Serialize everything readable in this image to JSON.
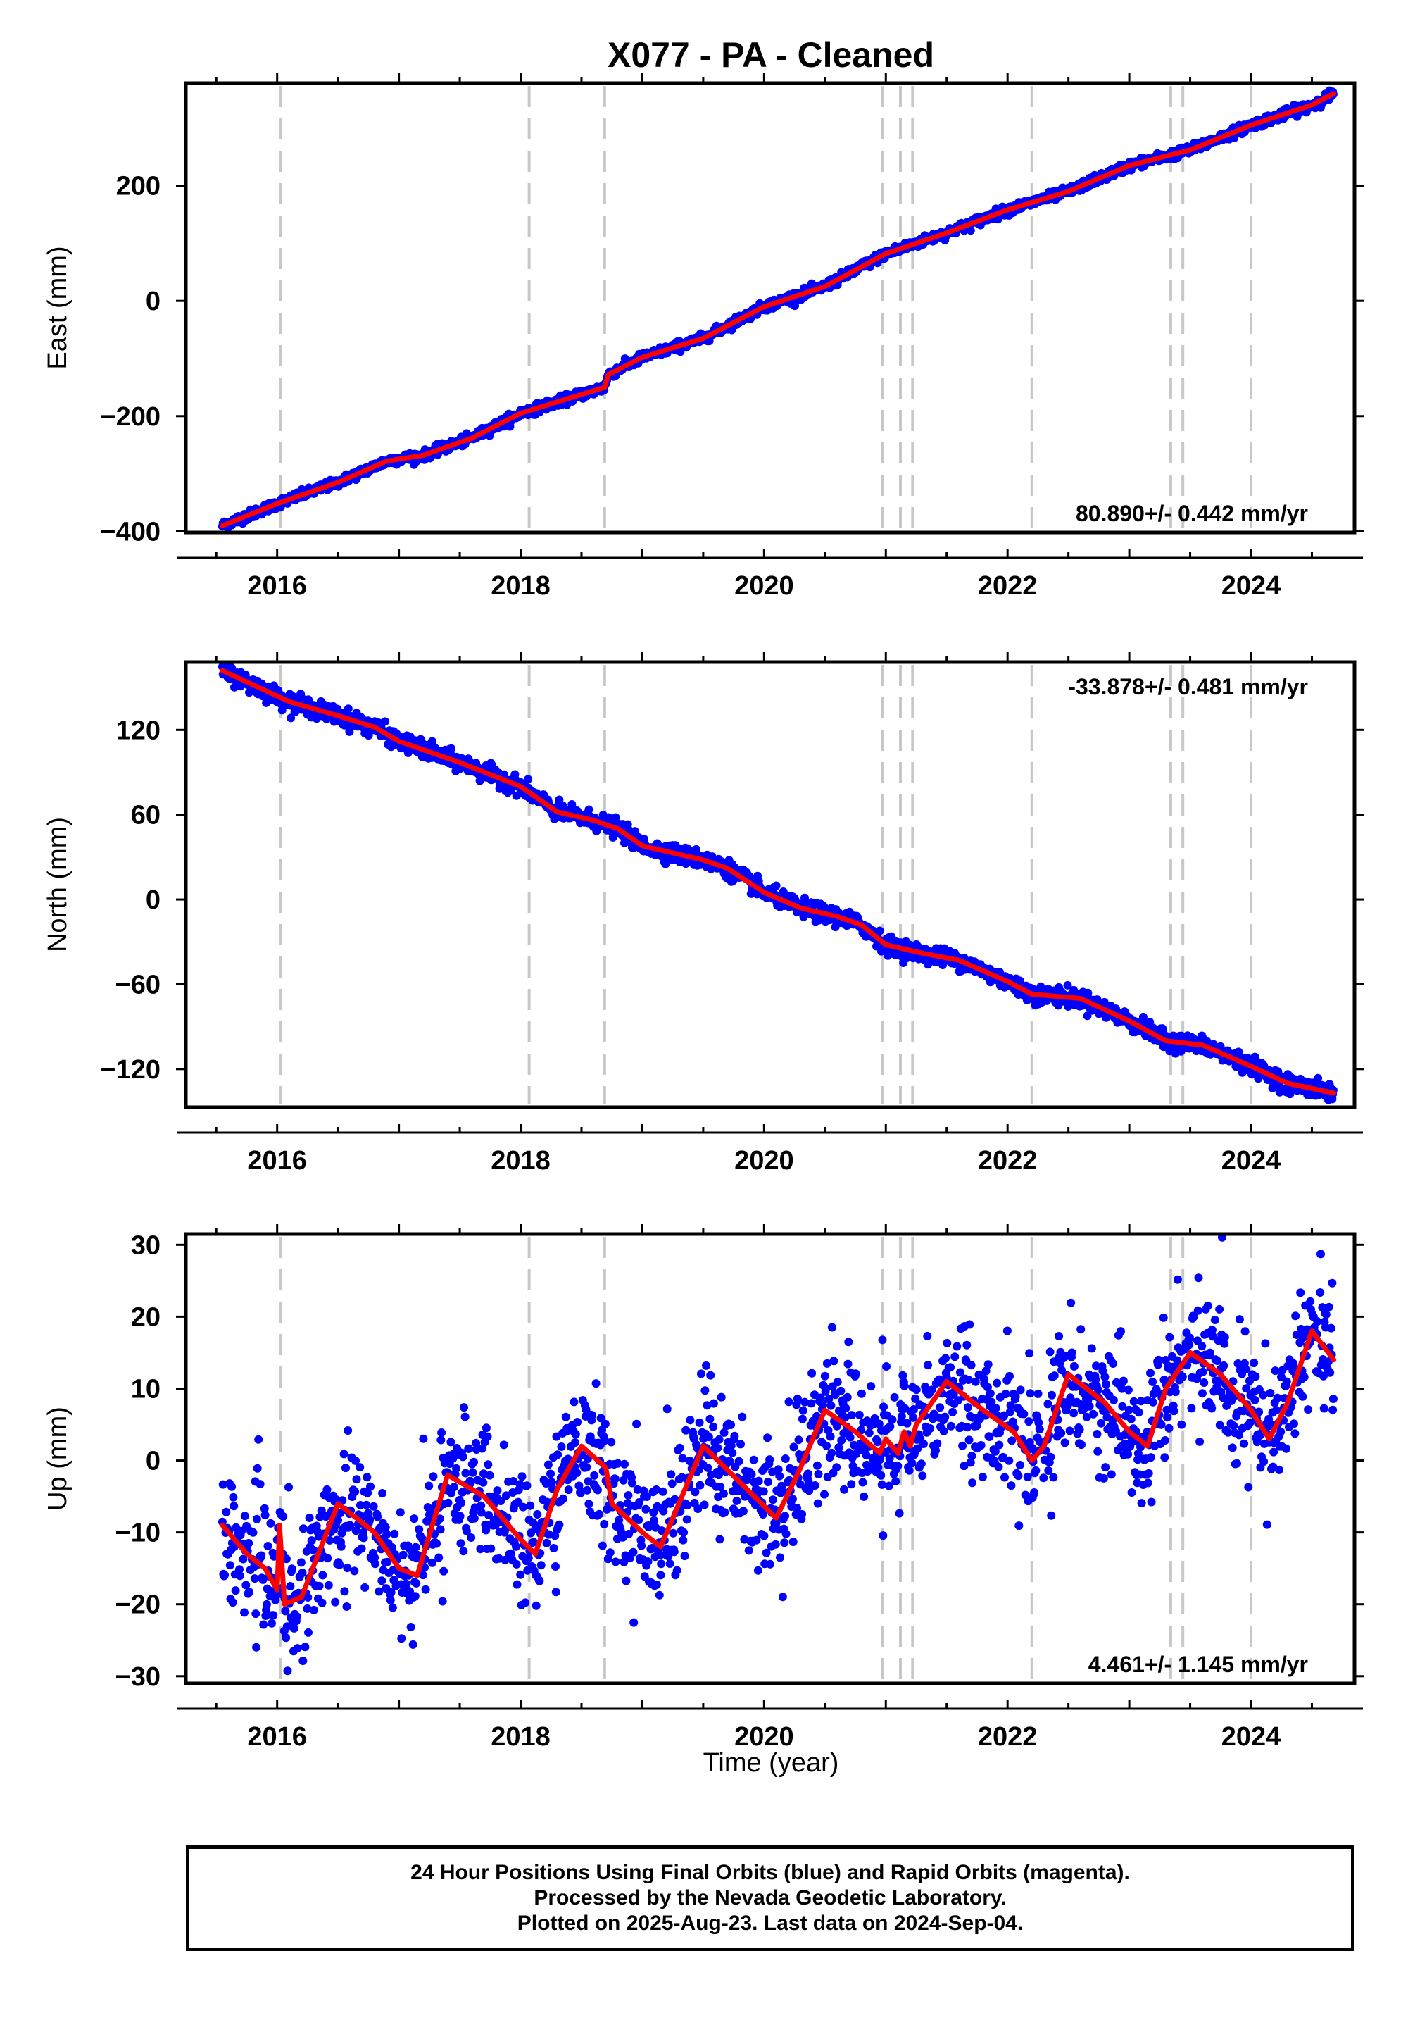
{
  "title": "X077  - PA - Cleaned",
  "footer": {
    "line1": "24 Hour Positions Using Final Orbits (blue) and Rapid Orbits (magenta).",
    "line2": "Processed by the Nevada Geodetic Laboratory.",
    "line3": "Plotted on 2025-Aug-23. Last data on 2024-Sep-04."
  },
  "colors": {
    "points": "#0000ff",
    "fit": "#ff0000",
    "event_lines": "#c8c8c8"
  },
  "chart_data": [
    {
      "type": "scatter",
      "panel": "east",
      "ylabel": "East (mm)",
      "xlabel": "",
      "rate_label": "80.890+/- 0.442 mm/yr",
      "xlim": [
        2015.25,
        2024.85
      ],
      "ylim": [
        -402,
        378
      ],
      "xticks": [
        2016,
        2018,
        2020,
        2022,
        2024
      ],
      "yticks": [
        -400,
        -200,
        0,
        200
      ],
      "event_lines": [
        2016.03,
        2018.07,
        2018.69,
        2020.97,
        2021.12,
        2021.22,
        2022.2,
        2023.34,
        2023.44,
        2024.0
      ],
      "fit": [
        [
          2015.55,
          -390
        ],
        [
          2016.0,
          -352
        ],
        [
          2016.5,
          -315
        ],
        [
          2016.9,
          -278
        ],
        [
          2017.2,
          -268
        ],
        [
          2017.6,
          -238
        ],
        [
          2018.0,
          -195
        ],
        [
          2018.69,
          -150
        ],
        [
          2018.72,
          -128
        ],
        [
          2019.0,
          -98
        ],
        [
          2019.5,
          -65
        ],
        [
          2020.0,
          -10
        ],
        [
          2020.5,
          25
        ],
        [
          2021.0,
          82
        ],
        [
          2021.5,
          118
        ],
        [
          2022.0,
          158
        ],
        [
          2022.5,
          190
        ],
        [
          2023.0,
          235
        ],
        [
          2023.5,
          262
        ],
        [
          2024.0,
          305
        ],
        [
          2024.5,
          340
        ],
        [
          2024.68,
          360
        ]
      ],
      "scatter_sigma": 4
    },
    {
      "type": "scatter",
      "panel": "north",
      "ylabel": "North (mm)",
      "xlabel": "",
      "rate_label": "-33.878+/- 0.481 mm/yr",
      "xlim": [
        2015.25,
        2024.85
      ],
      "ylim": [
        -147,
        168
      ],
      "xticks": [
        2016,
        2018,
        2020,
        2022,
        2024
      ],
      "yticks": [
        -120,
        -60,
        0,
        60,
        120
      ],
      "event_lines": [
        2016.03,
        2018.07,
        2018.69,
        2020.97,
        2021.12,
        2021.22,
        2022.2,
        2023.34,
        2023.44,
        2024.0
      ],
      "fit": [
        [
          2015.55,
          162
        ],
        [
          2015.8,
          152
        ],
        [
          2016.1,
          140
        ],
        [
          2016.5,
          130
        ],
        [
          2016.8,
          122
        ],
        [
          2017.0,
          112
        ],
        [
          2017.5,
          97
        ],
        [
          2018.0,
          80
        ],
        [
          2018.3,
          62
        ],
        [
          2018.6,
          56
        ],
        [
          2018.8,
          50
        ],
        [
          2019.0,
          38
        ],
        [
          2019.5,
          28
        ],
        [
          2019.7,
          22
        ],
        [
          2020.0,
          5
        ],
        [
          2020.3,
          -6
        ],
        [
          2020.6,
          -12
        ],
        [
          2020.8,
          -18
        ],
        [
          2021.0,
          -32
        ],
        [
          2021.3,
          -38
        ],
        [
          2021.6,
          -43
        ],
        [
          2022.0,
          -58
        ],
        [
          2022.2,
          -67
        ],
        [
          2022.6,
          -70
        ],
        [
          2023.0,
          -86
        ],
        [
          2023.3,
          -100
        ],
        [
          2023.6,
          -103
        ],
        [
          2024.0,
          -118
        ],
        [
          2024.3,
          -130
        ],
        [
          2024.68,
          -137
        ]
      ],
      "scatter_sigma": 3
    },
    {
      "type": "scatter",
      "panel": "up",
      "ylabel": "Up (mm)",
      "xlabel": "Time (year)",
      "rate_label": "4.461+/- 1.145 mm/yr",
      "xlim": [
        2015.25,
        2024.85
      ],
      "ylim": [
        -31,
        31.5
      ],
      "xticks": [
        2016,
        2018,
        2020,
        2022,
        2024
      ],
      "yticks": [
        -30,
        -20,
        -10,
        0,
        10,
        20,
        30
      ],
      "event_lines": [
        2016.03,
        2018.07,
        2018.69,
        2020.97,
        2021.12,
        2021.22,
        2022.2,
        2023.34,
        2023.44,
        2024.0
      ],
      "fit": [
        [
          2015.55,
          -9
        ],
        [
          2015.75,
          -13
        ],
        [
          2015.9,
          -15
        ],
        [
          2016.0,
          -18
        ],
        [
          2016.02,
          -9
        ],
        [
          2016.06,
          -20
        ],
        [
          2016.2,
          -19
        ],
        [
          2016.5,
          -6
        ],
        [
          2016.8,
          -10
        ],
        [
          2017.0,
          -15
        ],
        [
          2017.15,
          -16
        ],
        [
          2017.4,
          -2
        ],
        [
          2017.7,
          -5
        ],
        [
          2018.0,
          -11
        ],
        [
          2018.12,
          -13
        ],
        [
          2018.3,
          -4
        ],
        [
          2018.5,
          2
        ],
        [
          2018.7,
          -1
        ],
        [
          2018.75,
          -6
        ],
        [
          2019.0,
          -10
        ],
        [
          2019.15,
          -12
        ],
        [
          2019.5,
          2
        ],
        [
          2019.8,
          -3
        ],
        [
          2020.1,
          -8
        ],
        [
          2020.3,
          -1
        ],
        [
          2020.5,
          7
        ],
        [
          2020.75,
          4
        ],
        [
          2020.95,
          1
        ],
        [
          2021.0,
          3
        ],
        [
          2021.1,
          1
        ],
        [
          2021.15,
          4
        ],
        [
          2021.2,
          2
        ],
        [
          2021.25,
          5
        ],
        [
          2021.5,
          11
        ],
        [
          2021.8,
          7
        ],
        [
          2022.05,
          4
        ],
        [
          2022.2,
          0
        ],
        [
          2022.3,
          2
        ],
        [
          2022.5,
          12
        ],
        [
          2022.8,
          8
        ],
        [
          2023.0,
          4
        ],
        [
          2023.15,
          2
        ],
        [
          2023.3,
          10
        ],
        [
          2023.5,
          15
        ],
        [
          2023.75,
          12
        ],
        [
          2024.0,
          7
        ],
        [
          2024.15,
          3
        ],
        [
          2024.3,
          8
        ],
        [
          2024.5,
          18
        ],
        [
          2024.68,
          14
        ]
      ],
      "scatter_sigma": 4.5
    }
  ]
}
